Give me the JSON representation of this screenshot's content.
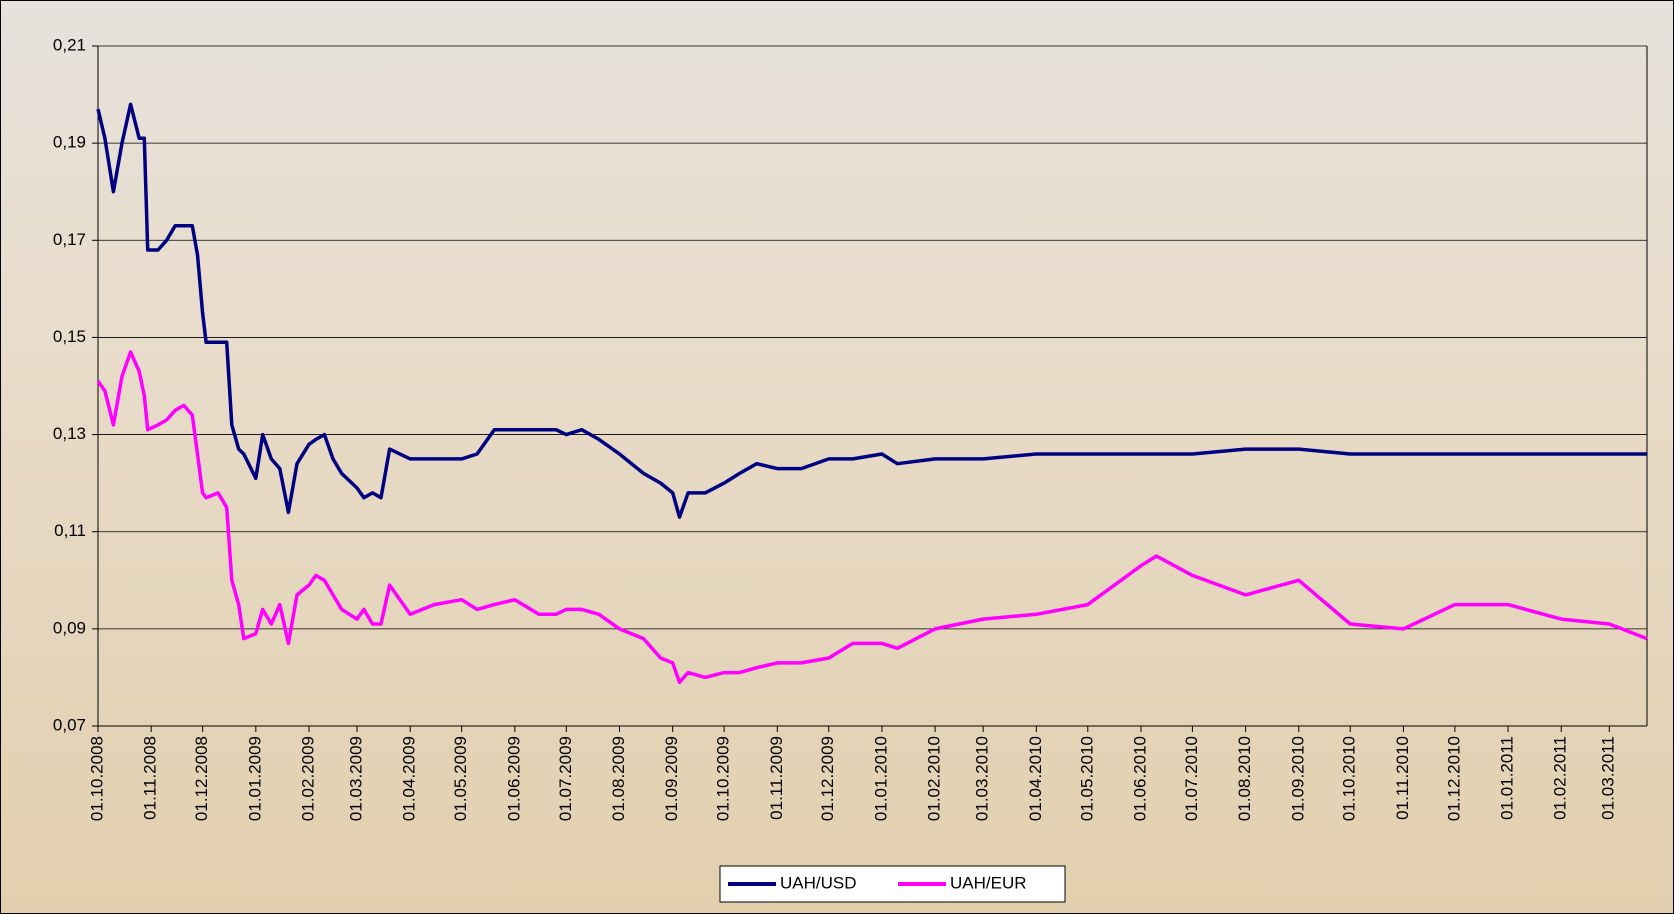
{
  "chart_data": {
    "type": "line",
    "x": [
      "01.10.2008",
      "05.10.2008",
      "10.10.2008",
      "15.10.2008",
      "20.10.2008",
      "25.10.2008",
      "28.10.2008",
      "30.10.2008",
      "05.11.2008",
      "10.11.2008",
      "15.11.2008",
      "20.11.2008",
      "25.11.2008",
      "28.11.2008",
      "01.12.2008",
      "03.12.2008",
      "10.12.2008",
      "15.12.2008",
      "18.12.2008",
      "22.12.2008",
      "25.12.2008",
      "01.01.2009",
      "05.01.2009",
      "10.01.2009",
      "15.01.2009",
      "20.01.2009",
      "25.01.2009",
      "01.02.2009",
      "05.02.2009",
      "10.02.2009",
      "15.02.2009",
      "20.02.2009",
      "01.03.2009",
      "05.03.2009",
      "10.03.2009",
      "15.03.2009",
      "20.03.2009",
      "01.04.2009",
      "15.04.2009",
      "01.05.2009",
      "10.05.2009",
      "20.05.2009",
      "01.06.2009",
      "15.06.2009",
      "25.06.2009",
      "01.07.2009",
      "10.07.2009",
      "20.07.2009",
      "01.08.2009",
      "15.08.2009",
      "25.08.2009",
      "01.09.2009",
      "05.09.2009",
      "10.09.2009",
      "20.09.2009",
      "01.10.2009",
      "10.10.2009",
      "20.10.2009",
      "01.11.2009",
      "15.11.2009",
      "01.12.2009",
      "15.12.2009",
      "01.01.2010",
      "10.01.2010",
      "01.02.2010",
      "01.03.2010",
      "01.04.2010",
      "01.05.2010",
      "01.06.2010",
      "10.06.2010",
      "01.07.2010",
      "01.08.2010",
      "01.09.2010",
      "01.10.2010",
      "01.11.2010",
      "01.12.2010",
      "01.01.2011",
      "01.02.2011",
      "01.03.2011",
      "23.03.2011"
    ],
    "series": [
      {
        "name": "UAH/USD",
        "color": "#000080",
        "values": [
          0.197,
          0.191,
          0.18,
          0.19,
          0.198,
          0.191,
          0.191,
          0.168,
          0.168,
          0.17,
          0.173,
          0.173,
          0.173,
          0.167,
          0.155,
          0.149,
          0.149,
          0.149,
          0.132,
          0.127,
          0.126,
          0.121,
          0.13,
          0.125,
          0.123,
          0.114,
          0.124,
          0.128,
          0.129,
          0.13,
          0.125,
          0.122,
          0.119,
          0.117,
          0.118,
          0.117,
          0.127,
          0.125,
          0.125,
          0.125,
          0.126,
          0.131,
          0.131,
          0.131,
          0.131,
          0.13,
          0.131,
          0.129,
          0.126,
          0.122,
          0.12,
          0.118,
          0.113,
          0.118,
          0.118,
          0.12,
          0.122,
          0.124,
          0.123,
          0.123,
          0.125,
          0.125,
          0.126,
          0.124,
          0.125,
          0.125,
          0.126,
          0.126,
          0.126,
          0.126,
          0.126,
          0.127,
          0.127,
          0.126,
          0.126,
          0.126,
          0.126,
          0.126,
          0.126,
          0.126
        ]
      },
      {
        "name": "UAH/EUR",
        "color": "#ff00ff",
        "values": [
          0.141,
          0.139,
          0.132,
          0.142,
          0.147,
          0.143,
          0.138,
          0.131,
          0.132,
          0.133,
          0.135,
          0.136,
          0.134,
          0.126,
          0.118,
          0.117,
          0.118,
          0.115,
          0.1,
          0.095,
          0.088,
          0.089,
          0.094,
          0.091,
          0.095,
          0.087,
          0.097,
          0.099,
          0.101,
          0.1,
          0.097,
          0.094,
          0.092,
          0.094,
          0.091,
          0.091,
          0.099,
          0.093,
          0.095,
          0.096,
          0.094,
          0.095,
          0.096,
          0.093,
          0.093,
          0.094,
          0.094,
          0.093,
          0.09,
          0.088,
          0.084,
          0.083,
          0.079,
          0.081,
          0.08,
          0.081,
          0.081,
          0.082,
          0.083,
          0.083,
          0.084,
          0.087,
          0.087,
          0.086,
          0.09,
          0.092,
          0.093,
          0.095,
          0.103,
          0.105,
          0.101,
          0.097,
          0.1,
          0.091,
          0.09,
          0.095,
          0.095,
          0.092,
          0.091,
          0.088
        ]
      }
    ],
    "xlim": [
      "01.10.2008",
      "23.03.2011"
    ],
    "xticks": [
      "01.10.2008",
      "01.11.2008",
      "01.12.2008",
      "01.01.2009",
      "01.02.2009",
      "01.03.2009",
      "01.04.2009",
      "01.05.2009",
      "01.06.2009",
      "01.07.2009",
      "01.08.2009",
      "01.09.2009",
      "01.10.2009",
      "01.11.2009",
      "01.12.2009",
      "01.01.2010",
      "01.02.2010",
      "01.03.2010",
      "01.04.2010",
      "01.05.2010",
      "01.06.2010",
      "01.07.2010",
      "01.08.2010",
      "01.09.2010",
      "01.10.2010",
      "01.11.2010",
      "01.12.2010",
      "01.01.2011",
      "01.02.2011",
      "01.03.2011"
    ],
    "ylim": [
      0.07,
      0.21
    ],
    "yticks": [
      {
        "value": 0.07,
        "label": "0,07"
      },
      {
        "value": 0.09,
        "label": "0,09"
      },
      {
        "value": 0.11,
        "label": "0,11"
      },
      {
        "value": 0.13,
        "label": "0,13"
      },
      {
        "value": 0.15,
        "label": "0,15"
      },
      {
        "value": 0.17,
        "label": "0,17"
      },
      {
        "value": 0.19,
        "label": "0,19"
      },
      {
        "value": 0.21,
        "label": "0,21"
      }
    ],
    "grid": true,
    "legend": "bottom"
  }
}
